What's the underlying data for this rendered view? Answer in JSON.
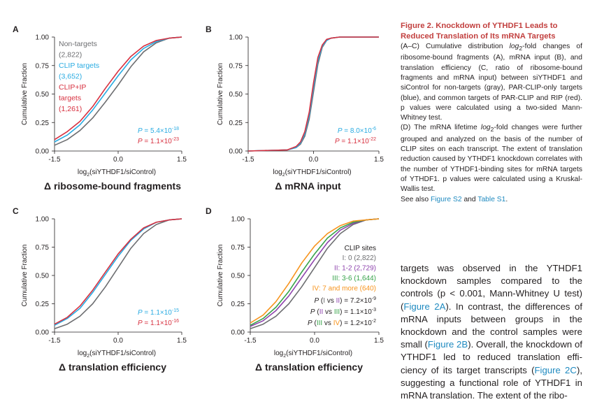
{
  "figure": {
    "ylabel": "Cumulative Fraction",
    "xlabel_main": "log",
    "xlabel_sub": "2",
    "xlabel_rest": "(siYTHDF1/siControl)",
    "xticks": [
      "-1.5",
      "0.0",
      "1.5"
    ],
    "yticks": [
      "0.00",
      "0.25",
      "0.50",
      "0.75",
      "1.00"
    ],
    "panels": [
      {
        "letter": "A",
        "title": "Δ ribosome-bound fragments",
        "legend": [
          "Non-targets",
          "(2,822)",
          "CLIP targets",
          "(3,652)",
          "CLIP+IP",
          "targets",
          "(1,261)"
        ],
        "p_label": "P",
        "p_values": [
          "= 5.4×10",
          "= 1.1×10"
        ],
        "p_exps": [
          "-18",
          "-23"
        ]
      },
      {
        "letter": "B",
        "title": "Δ mRNA input",
        "p_label": "P",
        "p_values": [
          "= 8.0×10",
          "= 1.1×10"
        ],
        "p_exps": [
          "-6",
          "-22"
        ]
      },
      {
        "letter": "C",
        "title": "Δ translation efficiency",
        "p_label": "P",
        "p_values": [
          "= 1.1×10",
          "= 1.1×10"
        ],
        "p_exps": [
          "-15",
          "-16"
        ]
      },
      {
        "letter": "D",
        "title": "Δ translation efficiency",
        "legend_title": "CLIP sites",
        "legend": [
          "I: 0 (2,822)",
          "II: 1-2 (2,729)",
          "III: 3-6 (1,644)",
          "IV: 7 and more (640)"
        ],
        "p_tests": [
          {
            "pre": "P (",
            "a": "I",
            "mid": " vs ",
            "b": "II",
            "post": ") = 7.2×10",
            "exp": "-9"
          },
          {
            "pre": "P (",
            "a": "II",
            "mid": " vs ",
            "b": "III",
            "post": ") = 1.1×10",
            "exp": "-3"
          },
          {
            "pre": "P (",
            "a": "III",
            "mid": " vs ",
            "b": "IV",
            "post": ") = 1.2×10",
            "exp": "-2"
          }
        ]
      }
    ]
  },
  "colors": {
    "gray": "#6d6e71",
    "blue": "#29abe2",
    "red": "#d7303f",
    "purple": "#8e44ad",
    "green": "#37a34a",
    "orange": "#f7941d",
    "caption_title": "#c2403f",
    "link": "#1f8ac0"
  },
  "chart_data": [
    {
      "type": "line",
      "panel": "A",
      "xlabel": "log2(siYTHDF1/siControl)",
      "ylabel": "Cumulative Fraction",
      "xlim": [
        -1.5,
        1.5
      ],
      "ylim": [
        0,
        1
      ],
      "series": [
        {
          "name": "Non-targets (2,822)",
          "color": "#6d6e71",
          "x": [
            -1.5,
            -1.2,
            -0.9,
            -0.6,
            -0.3,
            0.0,
            0.3,
            0.6,
            0.9,
            1.2,
            1.5
          ],
          "y": [
            0.05,
            0.1,
            0.18,
            0.29,
            0.43,
            0.58,
            0.74,
            0.87,
            0.95,
            0.99,
            1.0
          ]
        },
        {
          "name": "CLIP targets (3,652)",
          "color": "#29abe2",
          "x": [
            -1.5,
            -1.2,
            -0.9,
            -0.6,
            -0.3,
            0.0,
            0.3,
            0.6,
            0.9,
            1.2,
            1.5
          ],
          "y": [
            0.08,
            0.14,
            0.23,
            0.36,
            0.51,
            0.66,
            0.8,
            0.9,
            0.96,
            0.99,
            1.0
          ]
        },
        {
          "name": "CLIP+IP targets (1,261)",
          "color": "#d7303f",
          "x": [
            -1.5,
            -1.2,
            -0.9,
            -0.6,
            -0.3,
            0.0,
            0.3,
            0.6,
            0.9,
            1.2,
            1.5
          ],
          "y": [
            0.1,
            0.17,
            0.26,
            0.39,
            0.55,
            0.7,
            0.83,
            0.92,
            0.97,
            0.99,
            1.0
          ]
        }
      ]
    },
    {
      "type": "line",
      "panel": "B",
      "xlabel": "log2(siYTHDF1/siControl)",
      "ylabel": "Cumulative Fraction",
      "xlim": [
        -1.5,
        1.5
      ],
      "ylim": [
        0,
        1
      ],
      "series": [
        {
          "name": "Non-targets",
          "color": "#6d6e71",
          "x": [
            -1.5,
            -0.6,
            -0.4,
            -0.3,
            -0.2,
            -0.1,
            0.0,
            0.1,
            0.2,
            0.3,
            0.4,
            0.6,
            1.5
          ],
          "y": [
            0.0,
            0.01,
            0.03,
            0.06,
            0.13,
            0.28,
            0.52,
            0.76,
            0.91,
            0.97,
            0.99,
            1.0,
            1.0
          ]
        },
        {
          "name": "CLIP targets",
          "color": "#29abe2",
          "x": [
            -1.5,
            -0.6,
            -0.4,
            -0.3,
            -0.2,
            -0.1,
            0.0,
            0.1,
            0.2,
            0.3,
            0.4,
            0.6,
            1.5
          ],
          "y": [
            0.0,
            0.01,
            0.03,
            0.07,
            0.15,
            0.31,
            0.56,
            0.79,
            0.92,
            0.97,
            0.99,
            1.0,
            1.0
          ]
        },
        {
          "name": "CLIP+IP targets",
          "color": "#d7303f",
          "x": [
            -1.5,
            -0.6,
            -0.4,
            -0.3,
            -0.2,
            -0.1,
            0.0,
            0.1,
            0.2,
            0.3,
            0.4,
            0.6,
            1.5
          ],
          "y": [
            0.0,
            0.01,
            0.04,
            0.08,
            0.17,
            0.34,
            0.6,
            0.82,
            0.93,
            0.98,
            0.99,
            1.0,
            1.0
          ]
        }
      ]
    },
    {
      "type": "line",
      "panel": "C",
      "xlabel": "log2(siYTHDF1/siControl)",
      "ylabel": "Cumulative Fraction",
      "xlim": [
        -1.5,
        1.5
      ],
      "ylim": [
        0,
        1
      ],
      "series": [
        {
          "name": "Non-targets",
          "color": "#6d6e71",
          "x": [
            -1.5,
            -1.2,
            -0.9,
            -0.6,
            -0.3,
            0.0,
            0.3,
            0.6,
            0.9,
            1.2,
            1.5
          ],
          "y": [
            0.03,
            0.07,
            0.14,
            0.25,
            0.4,
            0.57,
            0.74,
            0.87,
            0.95,
            0.99,
            1.0
          ]
        },
        {
          "name": "CLIP targets",
          "color": "#29abe2",
          "x": [
            -1.5,
            -1.2,
            -0.9,
            -0.6,
            -0.3,
            0.0,
            0.3,
            0.6,
            0.9,
            1.2,
            1.5
          ],
          "y": [
            0.06,
            0.12,
            0.21,
            0.35,
            0.51,
            0.67,
            0.81,
            0.91,
            0.97,
            0.99,
            1.0
          ]
        },
        {
          "name": "CLIP+IP targets",
          "color": "#d7303f",
          "x": [
            -1.5,
            -1.2,
            -0.9,
            -0.6,
            -0.3,
            0.0,
            0.3,
            0.6,
            0.9,
            1.2,
            1.5
          ],
          "y": [
            0.07,
            0.13,
            0.23,
            0.37,
            0.53,
            0.69,
            0.82,
            0.92,
            0.97,
            0.99,
            1.0
          ]
        }
      ]
    },
    {
      "type": "line",
      "panel": "D",
      "xlabel": "log2(siYTHDF1/siControl)",
      "ylabel": "Cumulative Fraction",
      "xlim": [
        -1.5,
        1.5
      ],
      "ylim": [
        0,
        1
      ],
      "series": [
        {
          "name": "I: 0 (2,822)",
          "color": "#6d6e71",
          "x": [
            -1.5,
            -1.2,
            -0.9,
            -0.6,
            -0.3,
            0.0,
            0.3,
            0.6,
            0.9,
            1.2,
            1.5
          ],
          "y": [
            0.03,
            0.07,
            0.14,
            0.25,
            0.4,
            0.57,
            0.74,
            0.87,
            0.95,
            0.99,
            1.0
          ]
        },
        {
          "name": "II: 1-2 (2,729)",
          "color": "#8e44ad",
          "x": [
            -1.5,
            -1.2,
            -0.9,
            -0.6,
            -0.3,
            0.0,
            0.3,
            0.6,
            0.9,
            1.2,
            1.5
          ],
          "y": [
            0.05,
            0.1,
            0.19,
            0.32,
            0.48,
            0.64,
            0.79,
            0.9,
            0.96,
            0.99,
            1.0
          ]
        },
        {
          "name": "III: 3-6 (1,644)",
          "color": "#37a34a",
          "x": [
            -1.5,
            -1.2,
            -0.9,
            -0.6,
            -0.3,
            0.0,
            0.3,
            0.6,
            0.9,
            1.2,
            1.5
          ],
          "y": [
            0.06,
            0.12,
            0.22,
            0.36,
            0.53,
            0.69,
            0.83,
            0.92,
            0.97,
            0.99,
            1.0
          ]
        },
        {
          "name": "IV: 7 and more (640)",
          "color": "#f7941d",
          "x": [
            -1.5,
            -1.2,
            -0.9,
            -0.6,
            -0.3,
            0.0,
            0.3,
            0.6,
            0.9,
            1.2,
            1.5
          ],
          "y": [
            0.08,
            0.15,
            0.27,
            0.43,
            0.61,
            0.76,
            0.87,
            0.94,
            0.98,
            0.99,
            1.0
          ]
        }
      ]
    }
  ],
  "caption": {
    "title": "Figure 2. Knockdown of YTHDF1 Leads to Reduced Translation of Its mRNA Targets",
    "p1_a": "(A–C) Cumulative distribution ",
    "p1_log": "log",
    "p1_sub": "2",
    "p1_b": "-fold changes of ribosome-bound fragments (A), mRNA input (B), and translation efficiency (C, ratio of ribosome-bound fragments and mRNA input) between siYTHDF1 and siControl for non-targets (gray), PAR-CLIP-only targets (blue), and common targets of PAR-CLIP and RIP (red). p values were calculated using a two-sided Mann-Whitney test.",
    "p2_a": "(D) The mRNA lifetime ",
    "p2_log": "log",
    "p2_sub": "2",
    "p2_b": "-fold changes were further grouped and analyzed on the basis of the number of CLIP sites on each transcript. The extent of translation reduction caused by YTHDF1 knockdown correlates with the number of YTHDF1-binding sites for mRNA targets of YTHDF1. p values were calculated using a Kruskal-Wallis test.",
    "see_also": "See also ",
    "link1": "Figure S2",
    "and": " and ",
    "link2": "Table S1",
    "end": "."
  },
  "body": {
    "t1": "targets was observed in the YTHDF1 knockdown samples compared to the controls (p < 0.001, Mann-Whitney U test) (",
    "l1a": "Figure 2",
    "l1b": "A",
    "t2": "). In contrast, the differences of mRNA inputs between groups in the knockdown and the control samples were small (",
    "l2a": "Figure 2",
    "l2b": "B",
    "t3": "). Overall, the knockdown of YTHDF1 led to reduced translation effi-ciency of its target transcripts (",
    "l3a": "Figure 2",
    "l3b": "C",
    "t4": "), suggesting a functional role of YTHDF1 in mRNA translation. The extent of the ribo-"
  }
}
